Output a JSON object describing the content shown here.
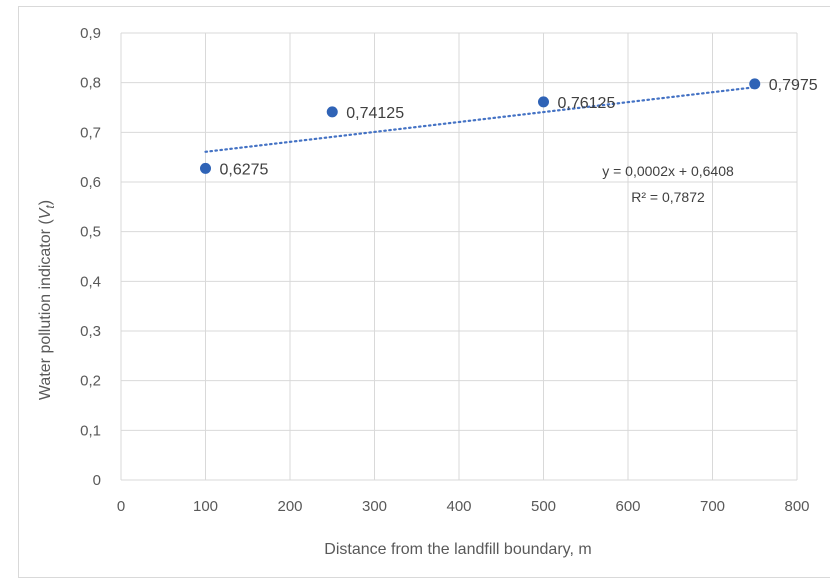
{
  "chart_data": {
    "type": "scatter",
    "title": "",
    "xlabel": "Distance from the landfill boundary, m",
    "ylabel_prefix": "Water pollution indicator (",
    "ylabel_symbol": "V",
    "ylabel_subscript": "t",
    "ylabel_suffix": ")",
    "xlim": [
      0,
      800
    ],
    "ylim": [
      0,
      0.9
    ],
    "x_ticks": [
      "0",
      "100",
      "200",
      "300",
      "400",
      "500",
      "600",
      "700",
      "800"
    ],
    "y_ticks": [
      "0",
      "0,1",
      "0,2",
      "0,3",
      "0,4",
      "0,5",
      "0,6",
      "0,7",
      "0,8",
      "0,9"
    ],
    "grid": true,
    "legend": "none",
    "series": [
      {
        "x": [
          100,
          250,
          500,
          750
        ],
        "y": [
          0.6275,
          0.74125,
          0.76125,
          0.7975
        ],
        "labels": [
          "0,6275",
          "0,74125",
          "0,76125",
          "0,7975"
        ],
        "color": "#2f63b6"
      }
    ],
    "trendline": {
      "type": "linear",
      "x_range": [
        100,
        750
      ],
      "slope": 0.0002,
      "intercept": 0.6408,
      "equation": "y = 0,0002x + 0,6408",
      "r_squared": "R² = 0,7872",
      "color": "#4472c4"
    }
  }
}
